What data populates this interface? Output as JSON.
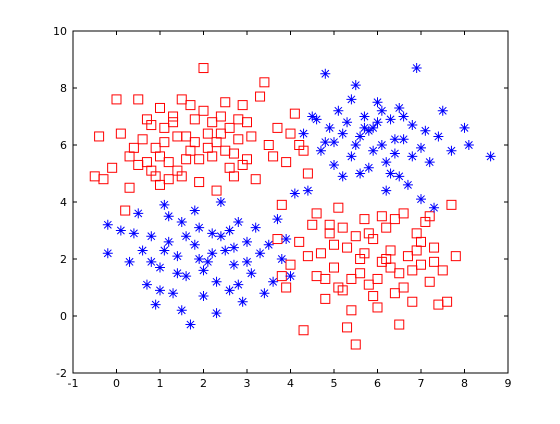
{
  "chart_data": {
    "type": "scatter",
    "title": "",
    "xlabel": "",
    "ylabel": "",
    "xlim": [
      -1,
      9
    ],
    "ylim": [
      -2,
      10
    ],
    "xticks": [
      "-1",
      "0",
      "1",
      "2",
      "3",
      "4",
      "5",
      "6",
      "7",
      "8",
      "9"
    ],
    "yticks": [
      "-2",
      "0",
      "2",
      "4",
      "6",
      "8",
      "10"
    ],
    "grid": false,
    "legend": "none",
    "series": [
      {
        "marker": "square",
        "color": "#ff0000",
        "points": [
          [
            -0.4,
            6.3
          ],
          [
            -0.5,
            4.9
          ],
          [
            -0.3,
            4.8
          ],
          [
            -0.1,
            5.2
          ],
          [
            0,
            7.6
          ],
          [
            0.1,
            6.4
          ],
          [
            0.2,
            3.7
          ],
          [
            0.3,
            5.6
          ],
          [
            0.4,
            5.9
          ],
          [
            0.5,
            7.6
          ],
          [
            0.6,
            6.2
          ],
          [
            0.7,
            5.4
          ],
          [
            0.8,
            6.7
          ],
          [
            0.9,
            4.9
          ],
          [
            1.0,
            7.3
          ],
          [
            1.1,
            6.1
          ],
          [
            1.2,
            5.4
          ],
          [
            1.3,
            6.8
          ],
          [
            1.4,
            5.1
          ],
          [
            1.5,
            7.6
          ],
          [
            1.6,
            6.3
          ],
          [
            1.7,
            5.8
          ],
          [
            1.8,
            6.9
          ],
          [
            1.9,
            5.5
          ],
          [
            2.0,
            8.7
          ],
          [
            2.1,
            6.4
          ],
          [
            2.2,
            5.6
          ],
          [
            2.3,
            6.1
          ],
          [
            2.4,
            7.0
          ],
          [
            2.5,
            5.8
          ],
          [
            2.6,
            6.6
          ],
          [
            2.7,
            4.9
          ],
          [
            2.8,
            6.2
          ],
          [
            2.9,
            7.4
          ],
          [
            3.0,
            5.5
          ],
          [
            3.1,
            6.3
          ],
          [
            3.2,
            4.8
          ],
          [
            3.4,
            8.2
          ],
          [
            3.5,
            6.0
          ],
          [
            3.7,
            6.6
          ],
          [
            3.9,
            5.4
          ],
          [
            4.1,
            7.1
          ],
          [
            4.3,
            5.8
          ],
          [
            1.0,
            4.6
          ],
          [
            1.5,
            4.9
          ],
          [
            2.3,
            4.4
          ],
          [
            0.9,
            5.9
          ],
          [
            1.8,
            6.1
          ],
          [
            2.6,
            5.2
          ],
          [
            1.3,
            7.0
          ],
          [
            0.5,
            5.3
          ],
          [
            1.1,
            6.6
          ],
          [
            2.0,
            7.2
          ],
          [
            2.8,
            6.9
          ],
          [
            1.6,
            5.5
          ],
          [
            2.1,
            5.9
          ],
          [
            3.3,
            7.7
          ],
          [
            0.7,
            6.9
          ],
          [
            1.9,
            4.7
          ],
          [
            2.4,
            6.4
          ],
          [
            1.2,
            4.8
          ],
          [
            3.0,
            6.8
          ],
          [
            2.7,
            5.7
          ],
          [
            0.8,
            5.1
          ],
          [
            1.4,
            6.3
          ],
          [
            2.2,
            6.8
          ],
          [
            3.6,
            5.6
          ],
          [
            4.0,
            6.4
          ],
          [
            1.7,
            7.4
          ],
          [
            2.9,
            5.3
          ],
          [
            3.8,
            3.9
          ],
          [
            4.2,
            6.0
          ],
          [
            4.4,
            5.0
          ],
          [
            0.3,
            4.5
          ],
          [
            1.0,
            5.6
          ],
          [
            2.5,
            7.5
          ],
          [
            4.0,
            1.8
          ],
          [
            4.2,
            2.6
          ],
          [
            4.3,
            -0.5
          ],
          [
            4.5,
            3.2
          ],
          [
            4.6,
            1.4
          ],
          [
            4.7,
            2.2
          ],
          [
            4.8,
            0.6
          ],
          [
            4.9,
            2.9
          ],
          [
            5.0,
            1.7
          ],
          [
            5.1,
            3.8
          ],
          [
            5.2,
            0.9
          ],
          [
            5.3,
            2.4
          ],
          [
            5.4,
            1.3
          ],
          [
            5.5,
            -1.0
          ],
          [
            5.6,
            2.0
          ],
          [
            5.7,
            3.4
          ],
          [
            5.8,
            1.1
          ],
          [
            5.9,
            2.7
          ],
          [
            6.0,
            0.3
          ],
          [
            6.1,
            1.9
          ],
          [
            6.2,
            3.1
          ],
          [
            6.3,
            2.3
          ],
          [
            6.4,
            0.8
          ],
          [
            6.5,
            1.5
          ],
          [
            6.6,
            3.6
          ],
          [
            6.7,
            2.1
          ],
          [
            6.8,
            0.5
          ],
          [
            6.9,
            2.9
          ],
          [
            7.0,
            1.8
          ],
          [
            7.1,
            3.3
          ],
          [
            7.2,
            1.2
          ],
          [
            7.3,
            2.4
          ],
          [
            7.4,
            0.4
          ],
          [
            7.5,
            1.6
          ],
          [
            7.6,
            0.5
          ],
          [
            7.7,
            3.9
          ],
          [
            7.8,
            2.1
          ],
          [
            4.4,
            2.1
          ],
          [
            4.6,
            3.6
          ],
          [
            4.8,
            1.3
          ],
          [
            5.0,
            2.5
          ],
          [
            5.2,
            3.1
          ],
          [
            5.4,
            0.2
          ],
          [
            5.6,
            1.5
          ],
          [
            5.8,
            2.9
          ],
          [
            6.0,
            1.3
          ],
          [
            6.2,
            2.0
          ],
          [
            6.4,
            3.4
          ],
          [
            6.6,
            1.0
          ],
          [
            6.8,
            1.6
          ],
          [
            7.0,
            2.6
          ],
          [
            7.2,
            3.5
          ],
          [
            5.3,
            -0.4
          ],
          [
            5.9,
            0.7
          ],
          [
            6.5,
            -0.3
          ],
          [
            3.9,
            1.0
          ],
          [
            3.7,
            2.7
          ],
          [
            3.8,
            1.4
          ],
          [
            5.1,
            1.0
          ],
          [
            5.7,
            2.2
          ],
          [
            6.3,
            1.7
          ],
          [
            6.9,
            2.3
          ],
          [
            4.9,
            3.2
          ],
          [
            5.5,
            2.8
          ],
          [
            6.1,
            3.5
          ],
          [
            7.3,
            1.9
          ]
        ]
      },
      {
        "marker": "asterisk",
        "color": "#0000ff",
        "points": [
          [
            4.3,
            6.4
          ],
          [
            4.5,
            7.0
          ],
          [
            4.7,
            5.8
          ],
          [
            4.8,
            8.5
          ],
          [
            4.9,
            6.6
          ],
          [
            5.0,
            6.1
          ],
          [
            5.1,
            7.2
          ],
          [
            5.2,
            4.9
          ],
          [
            5.3,
            6.8
          ],
          [
            5.4,
            5.6
          ],
          [
            5.5,
            8.1
          ],
          [
            5.6,
            6.3
          ],
          [
            5.7,
            7.0
          ],
          [
            5.8,
            5.2
          ],
          [
            5.9,
            6.6
          ],
          [
            6.0,
            7.5
          ],
          [
            6.1,
            6.0
          ],
          [
            6.2,
            4.4
          ],
          [
            6.3,
            6.9
          ],
          [
            6.4,
            5.7
          ],
          [
            6.5,
            7.3
          ],
          [
            6.6,
            6.2
          ],
          [
            6.7,
            4.6
          ],
          [
            6.8,
            6.7
          ],
          [
            6.9,
            8.7
          ],
          [
            7.0,
            5.9
          ],
          [
            7.1,
            6.5
          ],
          [
            7.2,
            5.4
          ],
          [
            7.4,
            6.3
          ],
          [
            7.5,
            7.2
          ],
          [
            7.7,
            5.8
          ],
          [
            8.0,
            6.6
          ],
          [
            8.1,
            6.0
          ],
          [
            8.6,
            5.6
          ],
          [
            4.4,
            4.4
          ],
          [
            4.6,
            6.9
          ],
          [
            5.0,
            5.3
          ],
          [
            5.2,
            6.4
          ],
          [
            5.4,
            7.6
          ],
          [
            5.6,
            5.0
          ],
          [
            5.8,
            6.5
          ],
          [
            6.0,
            6.8
          ],
          [
            6.2,
            5.4
          ],
          [
            6.4,
            6.2
          ],
          [
            6.6,
            7.0
          ],
          [
            6.8,
            5.6
          ],
          [
            7.0,
            4.1
          ],
          [
            7.3,
            3.8
          ],
          [
            6.5,
            4.9
          ],
          [
            5.9,
            5.8
          ],
          [
            6.1,
            7.2
          ],
          [
            6.3,
            5.0
          ],
          [
            5.5,
            6.0
          ],
          [
            5.7,
            6.6
          ],
          [
            4.8,
            6.1
          ],
          [
            4.1,
            4.3
          ],
          [
            -0.2,
            3.2
          ],
          [
            -0.2,
            2.2
          ],
          [
            0.1,
            3.0
          ],
          [
            0.3,
            1.9
          ],
          [
            0.5,
            3.6
          ],
          [
            0.6,
            2.3
          ],
          [
            0.7,
            1.1
          ],
          [
            0.8,
            2.8
          ],
          [
            0.9,
            0.4
          ],
          [
            1.0,
            1.7
          ],
          [
            1.1,
            3.9
          ],
          [
            1.2,
            2.6
          ],
          [
            1.3,
            0.8
          ],
          [
            1.4,
            2.1
          ],
          [
            1.5,
            3.3
          ],
          [
            1.6,
            1.4
          ],
          [
            1.7,
            -0.3
          ],
          [
            1.8,
            2.5
          ],
          [
            1.9,
            3.1
          ],
          [
            2.0,
            0.7
          ],
          [
            2.1,
            1.9
          ],
          [
            2.2,
            2.9
          ],
          [
            2.3,
            1.2
          ],
          [
            2.4,
            4.0
          ],
          [
            2.5,
            2.3
          ],
          [
            2.6,
            0.9
          ],
          [
            2.7,
            1.8
          ],
          [
            2.8,
            3.3
          ],
          [
            2.9,
            0.5
          ],
          [
            3.0,
            2.6
          ],
          [
            3.1,
            1.5
          ],
          [
            3.2,
            3.1
          ],
          [
            3.4,
            0.8
          ],
          [
            3.5,
            2.5
          ],
          [
            3.6,
            1.2
          ],
          [
            3.7,
            3.4
          ],
          [
            3.8,
            2.0
          ],
          [
            4.0,
            1.4
          ],
          [
            1.2,
            3.5
          ],
          [
            1.6,
            2.8
          ],
          [
            2.0,
            1.6
          ],
          [
            2.4,
            2.8
          ],
          [
            2.8,
            1.1
          ],
          [
            1.0,
            0.9
          ],
          [
            1.4,
            1.5
          ],
          [
            1.8,
            3.7
          ],
          [
            2.2,
            2.2
          ],
          [
            2.6,
            3.0
          ],
          [
            3.0,
            1.9
          ],
          [
            0.8,
            1.9
          ],
          [
            1.5,
            0.2
          ],
          [
            2.3,
            0.1
          ],
          [
            3.3,
            2.2
          ],
          [
            1.9,
            2.0
          ],
          [
            1.1,
            2.3
          ],
          [
            2.7,
            2.4
          ],
          [
            0.4,
            2.9
          ],
          [
            3.9,
            2.7
          ]
        ]
      }
    ]
  }
}
